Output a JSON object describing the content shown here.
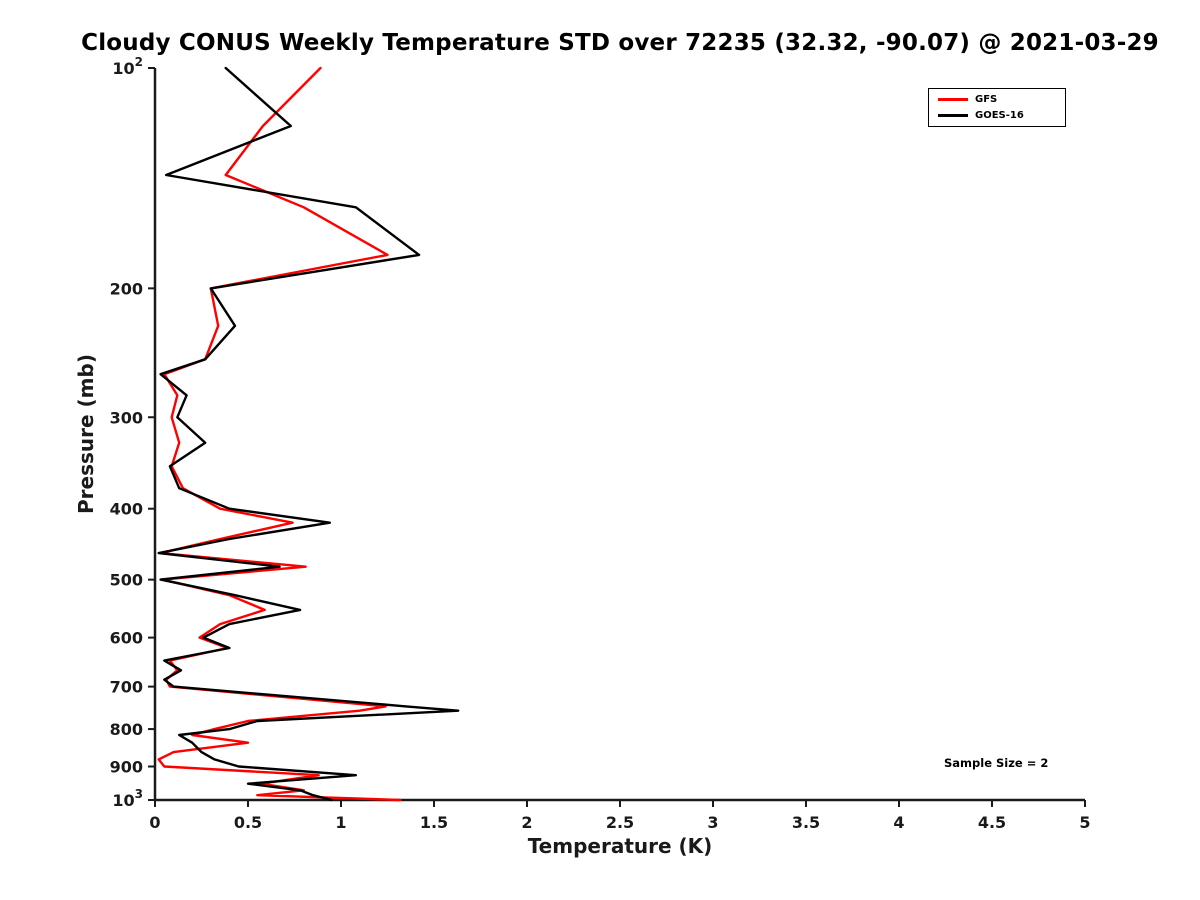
{
  "chart_data": {
    "type": "line",
    "title": "Cloudy CONUS Weekly Temperature STD over 72235 (32.32, -90.07) @ 2021-03-29",
    "xlabel": "Temperature (K)",
    "ylabel": "Pressure (mb)",
    "xlim": [
      0,
      5
    ],
    "ylim": [
      100,
      1000
    ],
    "yscale": "log",
    "y_axis_inverted": true,
    "grid": false,
    "axis_color": "#1a1a1a",
    "x_ticks": [
      0,
      0.5,
      1,
      1.5,
      2,
      2.5,
      3,
      3.5,
      4,
      4.5,
      5
    ],
    "x_tick_labels": [
      "0",
      "0.5",
      "1",
      "1.5",
      "2",
      "2.5",
      "3",
      "3.5",
      "4",
      "4.5",
      "5"
    ],
    "y_ticks": [
      100,
      200,
      300,
      400,
      500,
      600,
      700,
      800,
      900,
      1000
    ],
    "y_tick_labels": [
      "10^2",
      "200",
      "300",
      "400",
      "500",
      "600",
      "700",
      "800",
      "900",
      "10^3"
    ],
    "legend": {
      "position": "top-right",
      "entries": [
        "GFS",
        "GOES-16"
      ]
    },
    "annotation": "Sample Size = 2",
    "pressure_levels": [
      100,
      120,
      140,
      155,
      180,
      200,
      225,
      250,
      262,
      280,
      300,
      325,
      350,
      375,
      400,
      418,
      440,
      460,
      480,
      500,
      525,
      550,
      575,
      600,
      620,
      645,
      665,
      685,
      700,
      745,
      755,
      780,
      800,
      815,
      835,
      860,
      880,
      900,
      925,
      950,
      970,
      985,
      1000
    ],
    "series": [
      {
        "name": "GFS",
        "color": "#ff0000",
        "values": [
          0.89,
          0.58,
          0.38,
          0.8,
          1.25,
          0.3,
          0.34,
          0.27,
          0.05,
          0.12,
          0.09,
          0.13,
          0.09,
          0.15,
          0.35,
          0.74,
          0.35,
          0.03,
          0.81,
          0.04,
          0.4,
          0.59,
          0.35,
          0.24,
          0.39,
          0.08,
          0.12,
          0.06,
          0.08,
          1.24,
          1.1,
          0.5,
          0.32,
          0.2,
          0.5,
          0.1,
          0.02,
          0.05,
          0.88,
          0.57,
          0.8,
          0.55,
          1.32
        ]
      },
      {
        "name": "GOES-16",
        "color": "#000000",
        "values": [
          0.38,
          0.73,
          0.06,
          1.08,
          1.42,
          0.3,
          0.43,
          0.27,
          0.03,
          0.17,
          0.12,
          0.27,
          0.08,
          0.13,
          0.4,
          0.94,
          0.4,
          0.02,
          0.67,
          0.03,
          0.43,
          0.78,
          0.4,
          0.26,
          0.4,
          0.05,
          0.14,
          0.05,
          0.1,
          1.35,
          1.63,
          0.55,
          0.4,
          0.13,
          0.2,
          0.25,
          0.32,
          0.45,
          1.08,
          0.5,
          0.78,
          0.85,
          0.95
        ]
      }
    ]
  }
}
